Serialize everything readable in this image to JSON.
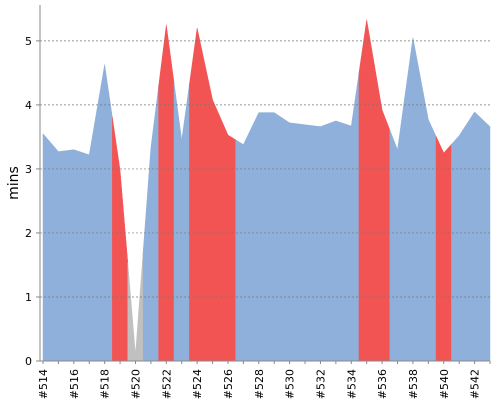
{
  "chart_data": {
    "type": "area",
    "y_label": "mins",
    "categories": [
      "#514",
      null,
      "#516",
      null,
      "#518",
      null,
      "#520",
      null,
      "#522",
      null,
      "#524",
      null,
      "#526",
      null,
      "#528",
      null,
      "#530",
      null,
      "#532",
      null,
      "#534",
      null,
      "#536",
      null,
      "#538",
      null,
      "#540",
      null,
      "#542",
      null
    ],
    "values": [
      3.55,
      3.27,
      3.3,
      3.22,
      4.63,
      2.98,
      0.1,
      3.33,
      5.25,
      3.45,
      5.2,
      4.08,
      3.53,
      3.38,
      3.88,
      3.88,
      3.72,
      3.69,
      3.66,
      3.75,
      3.67,
      5.33,
      3.92,
      3.3,
      5.05,
      3.77,
      3.25,
      3.52,
      3.89,
      3.66
    ],
    "colors": [
      "#8fb0da",
      "#8fb0da",
      "#8fb0da",
      "#8fb0da",
      "#8fb0da",
      "#f25454",
      "#c0c0c0",
      "#8fb0da",
      "#f25454",
      "#8fb0da",
      "#f25454",
      "#f25454",
      "#f25454",
      "#8fb0da",
      "#8fb0da",
      "#8fb0da",
      "#8fb0da",
      "#8fb0da",
      "#8fb0da",
      "#8fb0da",
      "#8fb0da",
      "#f25454",
      "#f25454",
      "#8fb0da",
      "#8fb0da",
      "#8fb0da",
      "#f25454",
      "#8fb0da",
      "#8fb0da",
      "#8fb0da"
    ],
    "ylim": [
      0,
      5.56
    ],
    "yticks": [
      0,
      1,
      2,
      3,
      4,
      5
    ],
    "grid": true
  }
}
